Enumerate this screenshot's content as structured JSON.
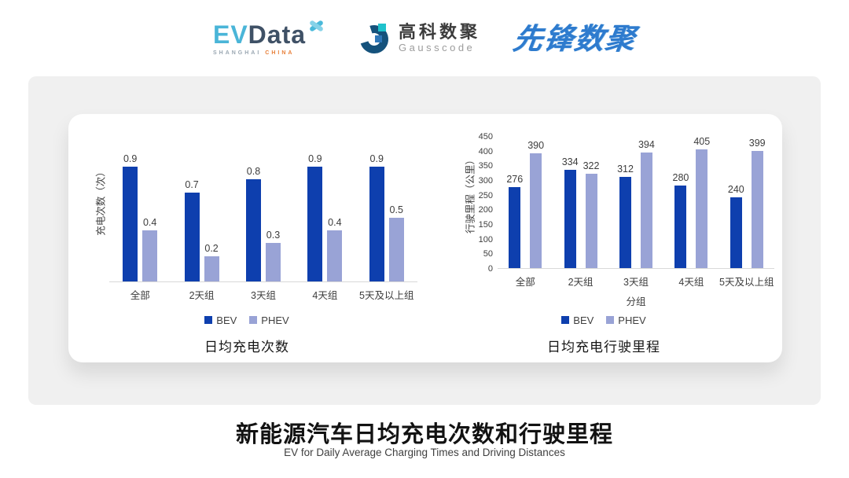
{
  "header": {
    "evdata": {
      "ev": "EV",
      "data": "Data",
      "sub_shanghai": "SHANGHAI",
      "sub_china": "CHINA"
    },
    "gausscode": {
      "cn": "高科数聚",
      "en": "Gausscode"
    },
    "pioneer": {
      "text": "先锋数聚"
    }
  },
  "colors": {
    "bev": "#0e3fae",
    "phev": "#99a3d6",
    "card_bg": "#f0f0f0",
    "panel_bg": "#ffffff",
    "evdata_cyan": "#4ab5d8",
    "evdata_navy": "#3f5166",
    "pioneer_blue": "#2e7bce",
    "china_orange": "#e8803a"
  },
  "chart_data": [
    {
      "type": "bar",
      "title": "日均充电次数",
      "xlabel": "",
      "ylabel": "充电次数（次）",
      "categories": [
        "全部",
        "2天组",
        "3天组",
        "4天组",
        "5天及以上组"
      ],
      "series": [
        {
          "name": "BEV",
          "color": "#0e3fae",
          "values": [
            0.9,
            0.7,
            0.8,
            0.9,
            0.9
          ]
        },
        {
          "name": "PHEV",
          "color": "#99a3d6",
          "values": [
            0.4,
            0.2,
            0.3,
            0.4,
            0.5
          ]
        }
      ],
      "ylim": [
        0,
        1.0
      ],
      "yticks": [],
      "grid": false,
      "legend_position": "bottom",
      "value_labels": true
    },
    {
      "type": "bar",
      "title": "日均充电行驶里程",
      "xlabel": "分组",
      "ylabel": "行驶里程（公里）",
      "categories": [
        "全部",
        "2天组",
        "3天组",
        "4天组",
        "5天及以上组"
      ],
      "series": [
        {
          "name": "BEV",
          "color": "#0e3fae",
          "values": [
            276,
            334,
            312,
            280,
            240
          ]
        },
        {
          "name": "PHEV",
          "color": "#99a3d6",
          "values": [
            390,
            322,
            394,
            405,
            399
          ]
        }
      ],
      "ylim": [
        0,
        450
      ],
      "yticks": [
        450,
        400,
        350,
        300,
        250,
        200,
        150,
        100,
        50,
        0
      ],
      "grid": false,
      "legend_position": "bottom",
      "value_labels": true
    }
  ],
  "footer": {
    "title": "新能源汽车日均充电次数和行驶里程",
    "subtitle": "EV for Daily Average Charging Times and Driving Distances"
  }
}
